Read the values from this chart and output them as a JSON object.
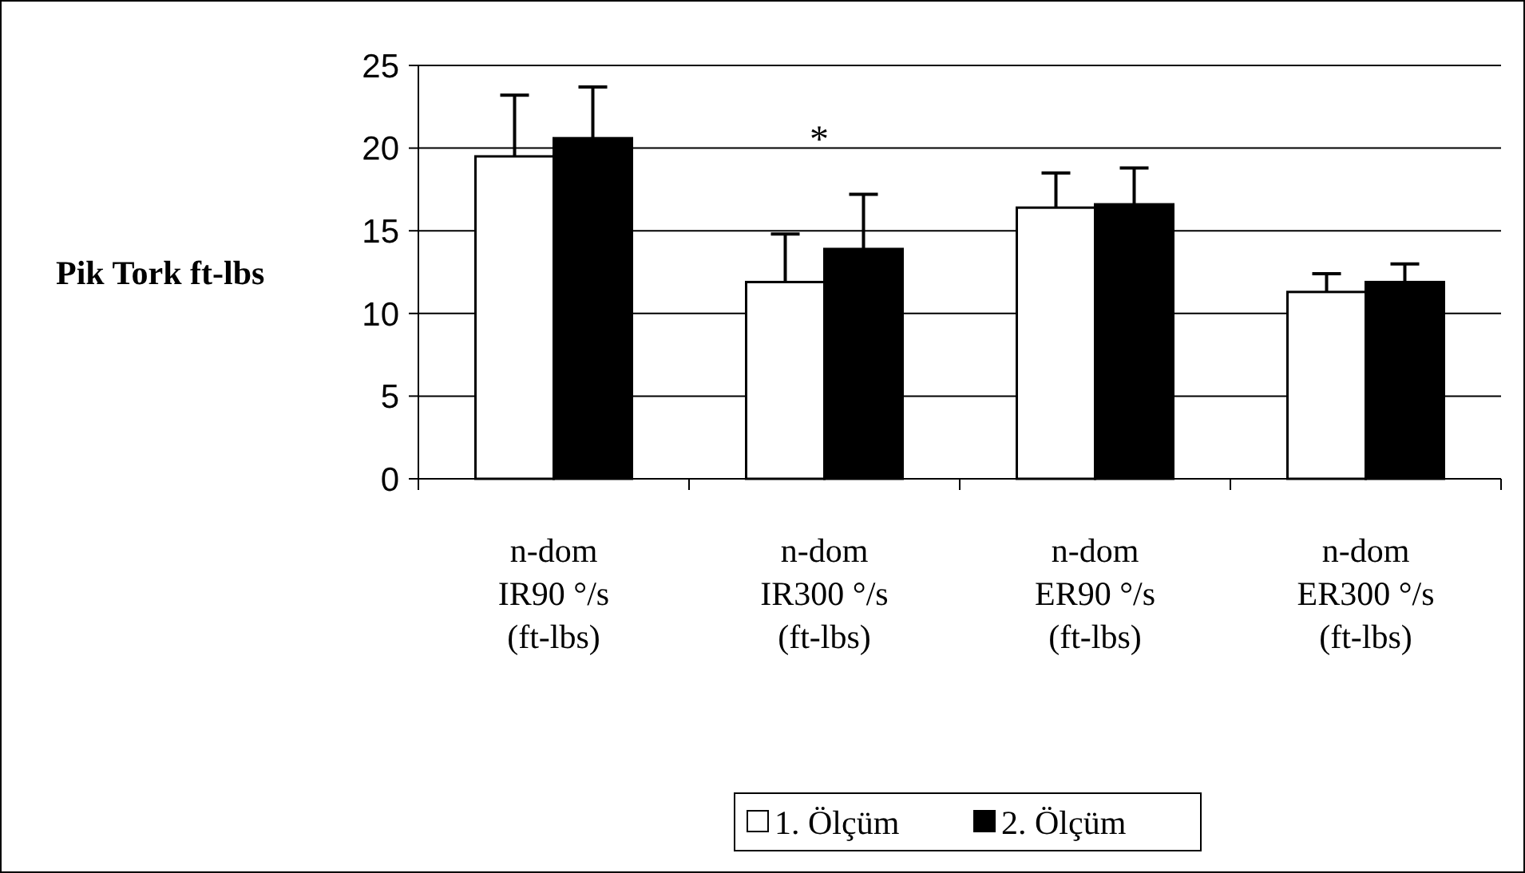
{
  "chart_data": {
    "type": "bar",
    "ylabel": "Pik Tork ft-lbs",
    "categories": [
      "n-dom\nIR90 °/s\n(ft-lbs)",
      "n-dom\nIR300 °/s\n(ft-lbs)",
      "n-dom\nER90 °/s\n(ft-lbs)",
      "n-dom\nER300 °/s\n(ft-lbs)"
    ],
    "series": [
      {
        "name": "1. Ölçüm",
        "color": "#ffffff",
        "values": [
          19.5,
          11.9,
          16.4,
          11.3
        ],
        "errors": [
          [
            19.5,
            23.2
          ],
          [
            11.9,
            14.8
          ],
          [
            16.4,
            18.5
          ],
          [
            11.3,
            12.4
          ]
        ]
      },
      {
        "name": "2. Ölçüm",
        "color": "#000000",
        "values": [
          20.6,
          13.9,
          16.6,
          11.9
        ],
        "errors": [
          [
            20.6,
            23.7
          ],
          [
            13.9,
            17.2
          ],
          [
            16.6,
            18.8
          ],
          [
            11.9,
            13.0
          ]
        ]
      }
    ],
    "ylim": [
      0,
      25
    ],
    "yticks": [
      0,
      5,
      10,
      15,
      20,
      25
    ],
    "grid": "y",
    "legend": "bottom",
    "annotations": [
      "*"
    ]
  }
}
